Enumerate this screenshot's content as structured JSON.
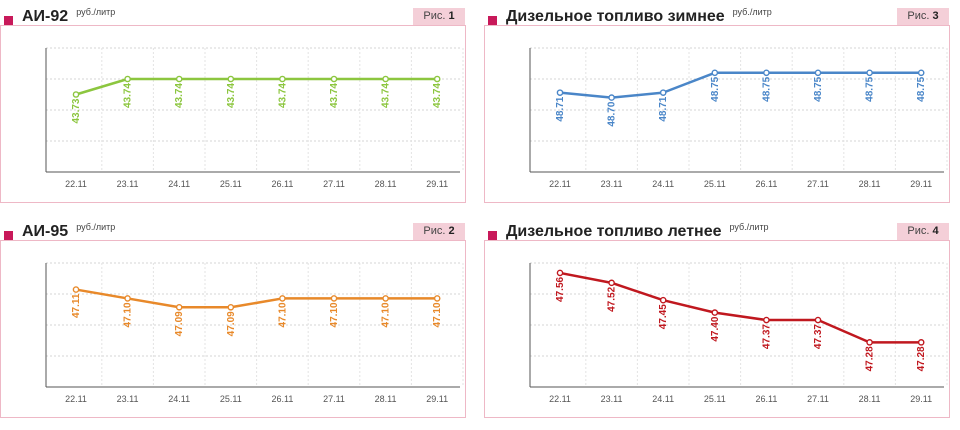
{
  "fig_prefix": "Рис.",
  "unit": "руб./литр",
  "chart_data": [
    {
      "type": "line",
      "title": "АИ-92",
      "unit": "руб./литр",
      "fig_num": "1",
      "color": "#8cc63f",
      "categories": [
        "22.11",
        "23.11",
        "24.11",
        "25.11",
        "26.11",
        "27.11",
        "28.11",
        "29.11"
      ],
      "values": [
        43.73,
        43.74,
        43.74,
        43.74,
        43.74,
        43.74,
        43.74,
        43.74
      ],
      "labels": [
        "43.73",
        "43.74",
        "43.74",
        "43.74",
        "43.74",
        "43.74",
        "43.74",
        "43.74"
      ],
      "ylim": [
        43.68,
        43.76
      ],
      "grid": true
    },
    {
      "type": "line",
      "title": "Дизельное топливо зимнее",
      "unit": "руб./литр",
      "fig_num": "3",
      "color": "#4a86c8",
      "categories": [
        "22.11",
        "23.11",
        "24.11",
        "25.11",
        "26.11",
        "27.11",
        "28.11",
        "29.11"
      ],
      "values": [
        48.71,
        48.7,
        48.71,
        48.75,
        48.75,
        48.75,
        48.75,
        48.75
      ],
      "labels": [
        "48.71",
        "48.70",
        "48.71",
        "48.75",
        "48.75",
        "48.75",
        "48.75",
        "48.75"
      ],
      "ylim": [
        48.55,
        48.8
      ],
      "grid": true
    },
    {
      "type": "line",
      "title": "АИ-95",
      "unit": "руб./литр",
      "fig_num": "2",
      "color": "#e8892a",
      "categories": [
        "22.11",
        "23.11",
        "24.11",
        "25.11",
        "26.11",
        "27.11",
        "28.11",
        "29.11"
      ],
      "values": [
        47.11,
        47.1,
        47.09,
        47.09,
        47.1,
        47.1,
        47.1,
        47.1
      ],
      "labels": [
        "47.11",
        "47.10",
        "47.09",
        "47.09",
        "47.10",
        "47.10",
        "47.10",
        "47.10"
      ],
      "ylim": [
        47.0,
        47.14
      ],
      "grid": true
    },
    {
      "type": "line",
      "title": "Дизельное топливо летнее",
      "unit": "руб./литр",
      "fig_num": "4",
      "color": "#c0181f",
      "categories": [
        "22.11",
        "23.11",
        "24.11",
        "25.11",
        "26.11",
        "27.11",
        "28.11",
        "29.11"
      ],
      "values": [
        47.56,
        47.52,
        47.45,
        47.4,
        47.37,
        47.37,
        47.28,
        47.28
      ],
      "labels": [
        "47.56",
        "47.52",
        "47.45",
        "47.40",
        "47.37",
        "47.37",
        "47.28",
        "47.28"
      ],
      "ylim": [
        47.1,
        47.6
      ],
      "grid": true
    }
  ]
}
